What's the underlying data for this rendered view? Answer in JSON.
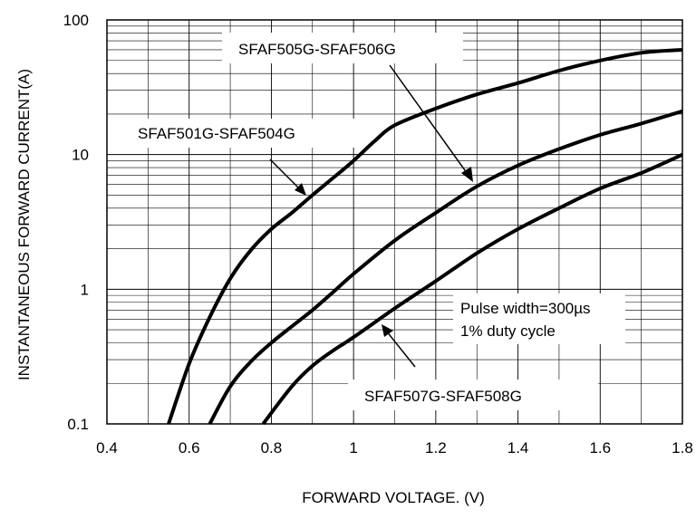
{
  "chart_data": {
    "type": "line",
    "title": "",
    "xlabel": "FORWARD VOLTAGE. (V)",
    "ylabel": "INSTANTANEOUS FORWARD CURRENT(A)",
    "x_scale": "linear",
    "y_scale": "log",
    "xlim": [
      0.4,
      1.8
    ],
    "ylim": [
      0.1,
      100
    ],
    "x_ticks": [
      "0.4",
      "0.6",
      "0.8",
      "1",
      "1.2",
      "1.4",
      "1.6",
      "1.8"
    ],
    "y_ticks": [
      "0.1",
      "1",
      "10",
      "100"
    ],
    "grid": true,
    "series": [
      {
        "name": "SFAF501G-SFAF504G",
        "x": [
          0.55,
          0.6,
          0.65,
          0.7,
          0.75,
          0.8,
          0.85,
          0.9,
          0.95,
          1.0,
          1.05,
          1.1,
          1.2,
          1.3,
          1.4,
          1.5,
          1.6,
          1.7,
          1.8
        ],
        "y": [
          0.1,
          0.28,
          0.62,
          1.2,
          1.95,
          2.8,
          3.7,
          5.0,
          6.7,
          9.0,
          12.5,
          16.5,
          22,
          28,
          34,
          42,
          50,
          57,
          60
        ]
      },
      {
        "name": "SFAF505G-SFAF506G",
        "x": [
          0.65,
          0.7,
          0.75,
          0.8,
          0.85,
          0.9,
          0.95,
          1.0,
          1.1,
          1.2,
          1.3,
          1.4,
          1.5,
          1.6,
          1.7,
          1.8
        ],
        "y": [
          0.1,
          0.19,
          0.29,
          0.4,
          0.53,
          0.7,
          0.95,
          1.3,
          2.3,
          3.7,
          5.8,
          8.3,
          11,
          14,
          17,
          21
        ]
      },
      {
        "name": "SFAF507G-SFAF508G",
        "x": [
          0.78,
          0.85,
          0.9,
          0.95,
          1.0,
          1.1,
          1.2,
          1.3,
          1.4,
          1.5,
          1.6,
          1.7,
          1.8
        ],
        "y": [
          0.1,
          0.19,
          0.27,
          0.35,
          0.44,
          0.72,
          1.15,
          1.85,
          2.8,
          4.0,
          5.6,
          7.3,
          10
        ]
      }
    ],
    "annotations": [
      "SFAF505G-SFAF506G",
      "SFAF501G-SFAF504G",
      "SFAF507G-SFAF508G",
      "Pulse width=300µs",
      "1% duty cycle"
    ]
  }
}
